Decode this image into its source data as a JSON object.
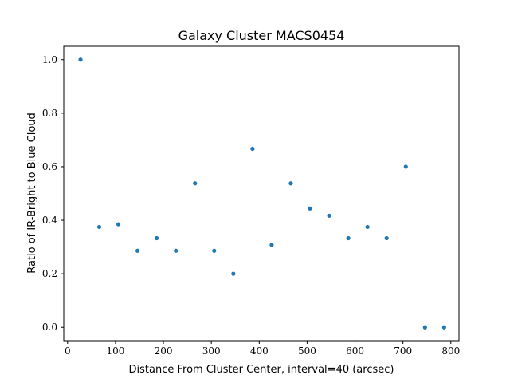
{
  "chart_data": {
    "type": "scatter",
    "title": "Galaxy Cluster MACS0454",
    "xlabel": "Distance From Cluster Center, interval=40 (arcsec)",
    "ylabel": "Ratio of IR-Bright to Blue Cloud",
    "xlim": [
      -8,
      817
    ],
    "ylim": [
      -0.05,
      1.05
    ],
    "x_ticks": [
      0,
      100,
      200,
      300,
      400,
      500,
      600,
      700,
      800
    ],
    "x_tick_labels": [
      "0",
      "100",
      "200",
      "300",
      "400",
      "500",
      "600",
      "700",
      "800"
    ],
    "y_ticks": [
      0.0,
      0.2,
      0.4,
      0.6,
      0.8,
      1.0
    ],
    "y_tick_labels": [
      "0.0",
      "0.2",
      "0.4",
      "0.6",
      "0.8",
      "1.0"
    ],
    "grid": false,
    "marker_color": "#1f77b4",
    "points": [
      {
        "x": 27,
        "y": 1.0
      },
      {
        "x": 66,
        "y": 0.375
      },
      {
        "x": 106,
        "y": 0.385
      },
      {
        "x": 146,
        "y": 0.286
      },
      {
        "x": 186,
        "y": 0.333
      },
      {
        "x": 226,
        "y": 0.286
      },
      {
        "x": 266,
        "y": 0.538
      },
      {
        "x": 306,
        "y": 0.286
      },
      {
        "x": 346,
        "y": 0.2
      },
      {
        "x": 386,
        "y": 0.667
      },
      {
        "x": 426,
        "y": 0.308
      },
      {
        "x": 466,
        "y": 0.538
      },
      {
        "x": 506,
        "y": 0.444
      },
      {
        "x": 546,
        "y": 0.417
      },
      {
        "x": 586,
        "y": 0.333
      },
      {
        "x": 626,
        "y": 0.375
      },
      {
        "x": 666,
        "y": 0.333
      },
      {
        "x": 706,
        "y": 0.6
      },
      {
        "x": 746,
        "y": 0.0
      },
      {
        "x": 786,
        "y": 0.0
      }
    ]
  }
}
